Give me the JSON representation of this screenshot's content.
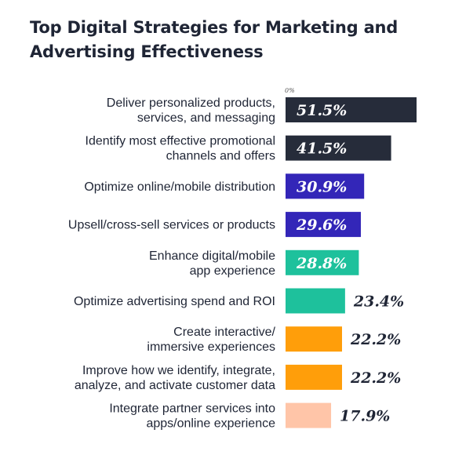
{
  "title_lines": [
    "Top Digital Strategies for Marketing and",
    "Advertising Effectiveness"
  ],
  "chart_data": {
    "type": "bar",
    "orientation": "horizontal",
    "title": "Top Digital Strategies for Marketing and Advertising Effectiveness",
    "axis_zero_label": "0%",
    "xlim": [
      0,
      51.5
    ],
    "categories": [
      [
        "Deliver personalized products,",
        "services, and messaging"
      ],
      [
        "Identify most effective promotional",
        "channels and offers"
      ],
      [
        "Optimize online/mobile distribution"
      ],
      [
        "Upsell/cross-sell services or products"
      ],
      [
        "Enhance digital/mobile",
        "app experience"
      ],
      [
        "Optimize advertising spend and ROI"
      ],
      [
        "Create interactive/",
        "immersive experiences"
      ],
      [
        "Improve how we identify, integrate,",
        "analyze, and activate customer data"
      ],
      [
        "Integrate partner services into",
        "apps/online experience"
      ]
    ],
    "values": [
      51.5,
      41.5,
      30.9,
      29.6,
      28.8,
      23.4,
      22.2,
      22.2,
      17.9
    ],
    "value_labels": [
      "51.5%",
      "41.5%",
      "30.9%",
      "29.6%",
      "28.8%",
      "23.4%",
      "22.2%",
      "22.2%",
      "17.9%"
    ],
    "bar_colors": [
      "#262c3a",
      "#262c3a",
      "#3326b8",
      "#3326b8",
      "#1ec19c",
      "#1ec19c",
      "#ff9e0a",
      "#ff9e0a",
      "#ffc5a8"
    ],
    "label_inside": [
      true,
      true,
      true,
      true,
      true,
      false,
      false,
      false,
      false
    ]
  }
}
